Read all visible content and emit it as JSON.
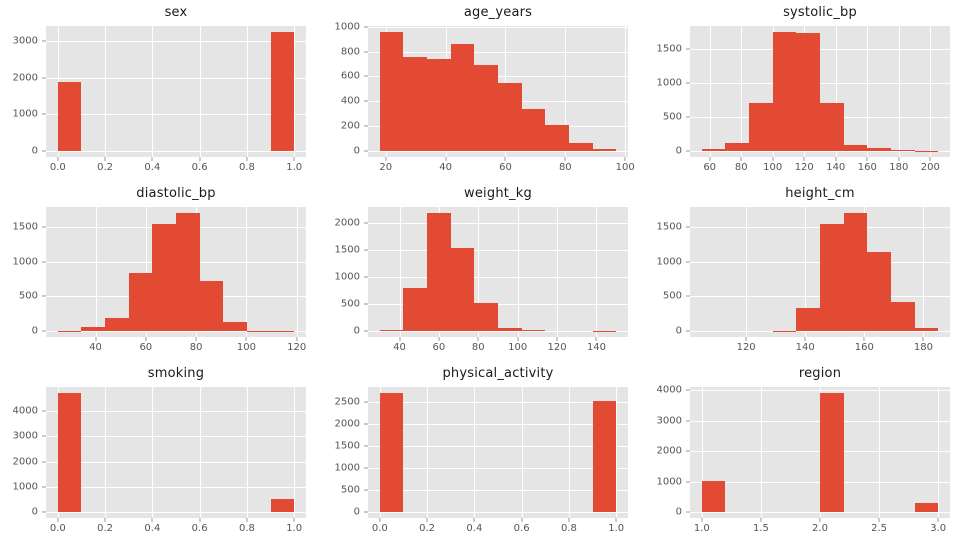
{
  "style": {
    "figure_bg": "#ffffff",
    "axes_bg": "#e5e5e5",
    "grid_color": "#ffffff",
    "bar_color": "#e24a33",
    "tick_color": "#555555",
    "title_color": "#1a1a1a"
  },
  "chart_data": {
    "type": "bar",
    "subtype": "histogram-grid",
    "layout": {
      "rows": 3,
      "cols": 3,
      "grid": "on",
      "legend": "none"
    },
    "charts": [
      {
        "title": "sex",
        "bin_edges": [
          0.0,
          0.1,
          0.2,
          0.3,
          0.4,
          0.5,
          0.6,
          0.7,
          0.8,
          0.9,
          1.0
        ],
        "counts": [
          1870,
          0,
          0,
          0,
          0,
          0,
          0,
          0,
          0,
          3250
        ],
        "xlim": [
          -0.05,
          1.05
        ],
        "ylim": [
          -162,
          3412
        ],
        "xticks": [
          0.0,
          0.2,
          0.4,
          0.6,
          0.8,
          1.0
        ],
        "xtick_labels": [
          "0.0",
          "0.2",
          "0.4",
          "0.6",
          "0.8",
          "1.0"
        ],
        "yticks": [
          0,
          1000,
          2000,
          3000
        ],
        "ytick_labels": [
          "0",
          "1000",
          "2000",
          "3000"
        ]
      },
      {
        "title": "age_years",
        "bin_edges": [
          18,
          25.9,
          33.8,
          41.7,
          49.6,
          57.5,
          65.4,
          73.3,
          81.2,
          89.1,
          97
        ],
        "counts": [
          960,
          760,
          745,
          865,
          695,
          545,
          340,
          205,
          60,
          10
        ],
        "xlim": [
          14.05,
          100.95
        ],
        "ylim": [
          -48,
          1008
        ],
        "xticks": [
          20,
          40,
          60,
          80,
          100
        ],
        "xtick_labels": [
          "20",
          "40",
          "60",
          "80",
          "100"
        ],
        "yticks": [
          0,
          200,
          400,
          600,
          800,
          1000
        ],
        "ytick_labels": [
          "0",
          "200",
          "400",
          "600",
          "800",
          "1000"
        ]
      },
      {
        "title": "systolic_bp",
        "bin_edges": [
          55,
          70,
          85,
          100,
          115,
          130,
          145,
          160,
          175,
          190,
          205
        ],
        "counts": [
          20,
          110,
          710,
          1760,
          1740,
          700,
          85,
          40,
          12,
          3
        ],
        "xlim": [
          47.5,
          212.5
        ],
        "ylim": [
          -88,
          1848
        ],
        "xticks": [
          60,
          80,
          100,
          120,
          140,
          160,
          180,
          200
        ],
        "xtick_labels": [
          "60",
          "80",
          "100",
          "120",
          "140",
          "160",
          "180",
          "200"
        ],
        "yticks": [
          0,
          500,
          1000,
          1500
        ],
        "ytick_labels": [
          "0",
          "500",
          "1000",
          "1500"
        ]
      },
      {
        "title": "diastolic_bp",
        "bin_edges": [
          25,
          34.4,
          43.8,
          53.2,
          62.6,
          72,
          81.4,
          90.8,
          100.2,
          109.6,
          119
        ],
        "counts": [
          10,
          70,
          190,
          830,
          1530,
          1700,
          720,
          140,
          10,
          5
        ],
        "xlim": [
          20.3,
          123.7
        ],
        "ylim": [
          -85,
          1785
        ],
        "xticks": [
          40,
          60,
          80,
          100,
          120
        ],
        "xtick_labels": [
          "40",
          "60",
          "80",
          "100",
          "120"
        ],
        "yticks": [
          0,
          500,
          1000,
          1500
        ],
        "ytick_labels": [
          "0",
          "500",
          "1000",
          "1500"
        ]
      },
      {
        "title": "weight_kg",
        "bin_edges": [
          30,
          42,
          54,
          66,
          78,
          90,
          102,
          114,
          126,
          138,
          150
        ],
        "counts": [
          35,
          810,
          2200,
          1540,
          520,
          70,
          20,
          0,
          0,
          2
        ],
        "xlim": [
          24,
          156
        ],
        "ylim": [
          -110,
          2310
        ],
        "xticks": [
          40,
          60,
          80,
          100,
          120,
          140
        ],
        "xtick_labels": [
          "40",
          "60",
          "80",
          "100",
          "120",
          "140"
        ],
        "yticks": [
          0,
          500,
          1000,
          1500,
          2000
        ],
        "ytick_labels": [
          "0",
          "500",
          "1000",
          "1500",
          "2000"
        ]
      },
      {
        "title": "height_cm",
        "bin_edges": [
          105,
          113,
          121,
          129,
          137,
          145,
          153,
          161,
          169,
          177,
          185
        ],
        "counts": [
          0,
          0,
          0,
          10,
          330,
          1530,
          1700,
          1140,
          420,
          55
        ],
        "xlim": [
          101,
          189
        ],
        "ylim": [
          -85,
          1785
        ],
        "xticks": [
          120,
          140,
          160,
          180
        ],
        "xtick_labels": [
          "120",
          "140",
          "160",
          "180"
        ],
        "yticks": [
          0,
          500,
          1000,
          1500
        ],
        "ytick_labels": [
          "0",
          "500",
          "1000",
          "1500"
        ]
      },
      {
        "title": "smoking",
        "bin_edges": [
          0.0,
          0.1,
          0.2,
          0.3,
          0.4,
          0.5,
          0.6,
          0.7,
          0.8,
          0.9,
          1.0
        ],
        "counts": [
          4700,
          0,
          0,
          0,
          0,
          0,
          0,
          0,
          0,
          500
        ],
        "xlim": [
          -0.05,
          1.05
        ],
        "ylim": [
          -235,
          4935
        ],
        "xticks": [
          0.0,
          0.2,
          0.4,
          0.6,
          0.8,
          1.0
        ],
        "xtick_labels": [
          "0.0",
          "0.2",
          "0.4",
          "0.6",
          "0.8",
          "1.0"
        ],
        "yticks": [
          0,
          1000,
          2000,
          3000,
          4000
        ],
        "ytick_labels": [
          "0",
          "1000",
          "2000",
          "3000",
          "4000"
        ]
      },
      {
        "title": "physical_activity",
        "bin_edges": [
          0.0,
          0.1,
          0.2,
          0.3,
          0.4,
          0.5,
          0.6,
          0.7,
          0.8,
          0.9,
          1.0
        ],
        "counts": [
          2700,
          0,
          0,
          0,
          0,
          0,
          0,
          0,
          0,
          2520
        ],
        "xlim": [
          -0.05,
          1.05
        ],
        "ylim": [
          -135,
          2835
        ],
        "xticks": [
          0.0,
          0.2,
          0.4,
          0.6,
          0.8,
          1.0
        ],
        "xtick_labels": [
          "0.0",
          "0.2",
          "0.4",
          "0.6",
          "0.8",
          "1.0"
        ],
        "yticks": [
          0,
          500,
          1000,
          1500,
          2000,
          2500
        ],
        "ytick_labels": [
          "0",
          "500",
          "1000",
          "1500",
          "2000",
          "2500"
        ]
      },
      {
        "title": "region",
        "bin_edges": [
          1.0,
          1.2,
          1.4,
          1.6,
          1.8,
          2.0,
          2.2,
          2.4,
          2.6,
          2.8,
          3.0
        ],
        "counts": [
          1010,
          0,
          0,
          0,
          0,
          3900,
          0,
          0,
          0,
          310
        ],
        "xlim": [
          0.9,
          3.1
        ],
        "ylim": [
          -195,
          4095
        ],
        "xticks": [
          1.0,
          1.5,
          2.0,
          2.5,
          3.0
        ],
        "xtick_labels": [
          "1.0",
          "1.5",
          "2.0",
          "2.5",
          "3.0"
        ],
        "yticks": [
          0,
          1000,
          2000,
          3000,
          4000
        ],
        "ytick_labels": [
          "0",
          "1000",
          "2000",
          "3000",
          "4000"
        ]
      }
    ]
  }
}
